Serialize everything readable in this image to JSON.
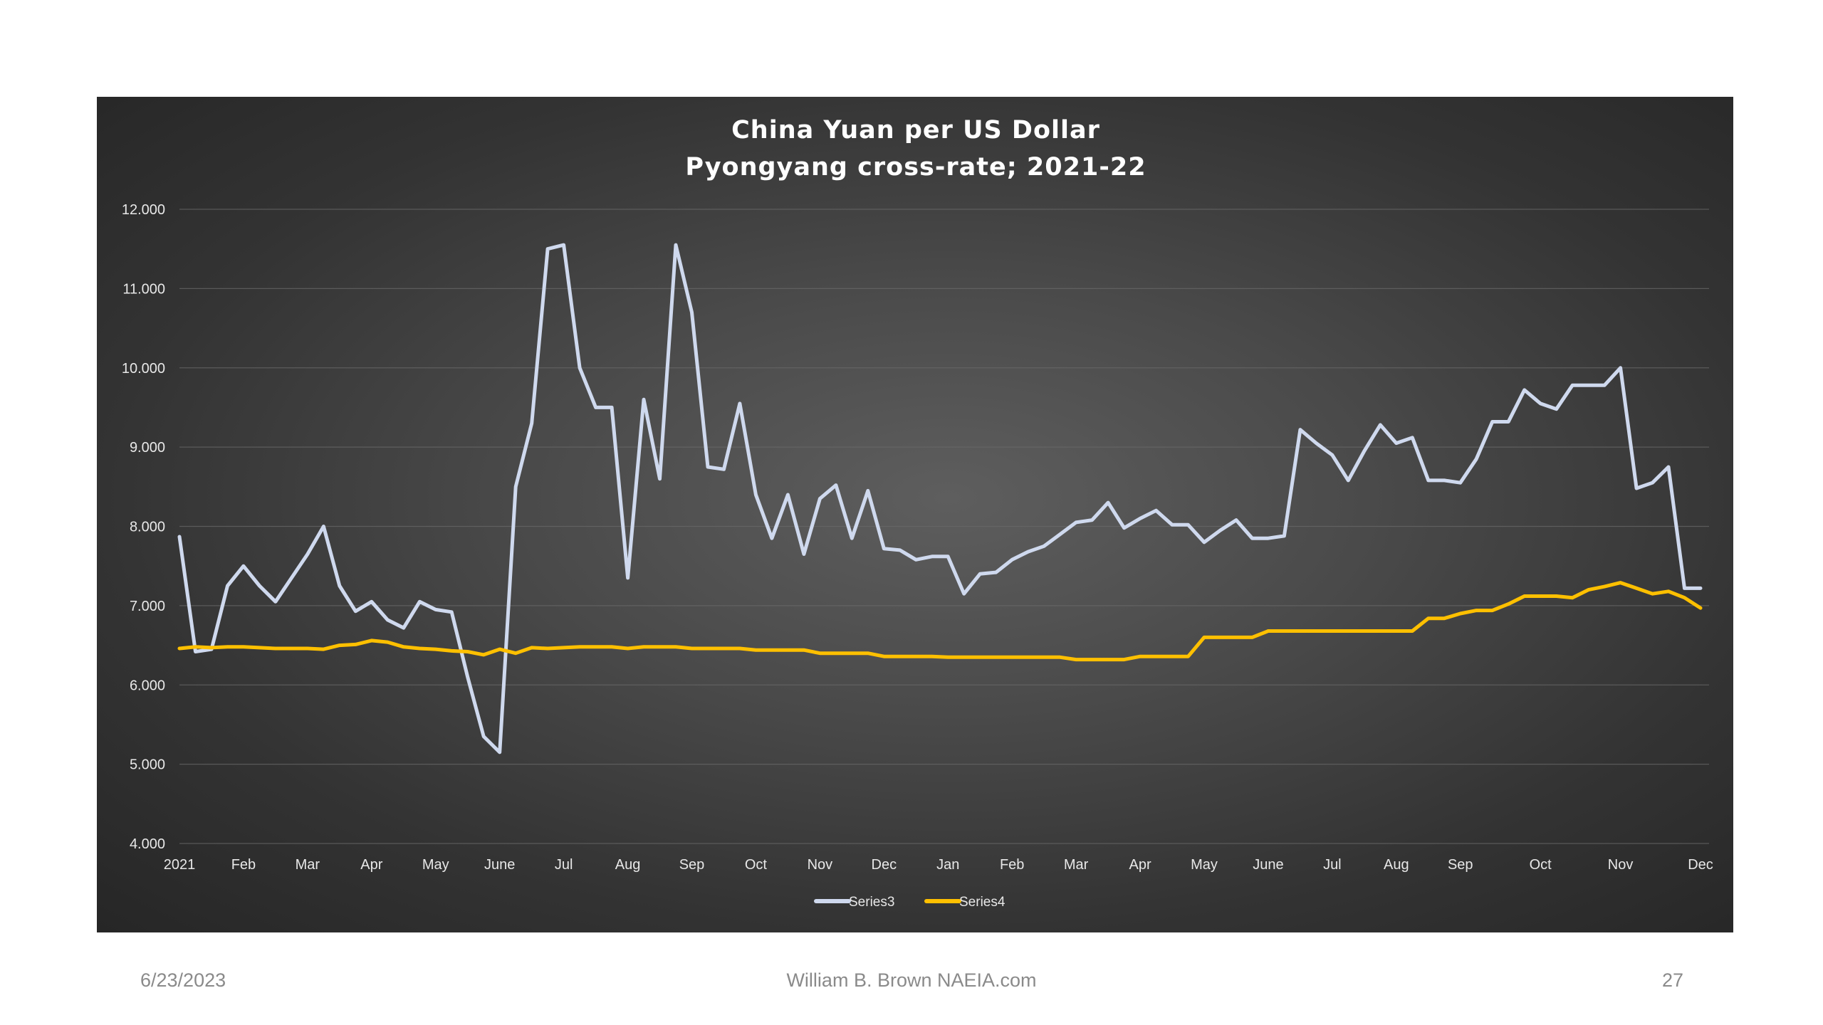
{
  "chart_data": {
    "type": "line",
    "title": [
      "China Yuan per US Dollar",
      "Pyongyang cross-rate; 2021-22"
    ],
    "xlabel": "",
    "ylabel": "",
    "ylim": [
      4,
      12
    ],
    "yticks": [
      "4.000",
      "5.000",
      "6.000",
      "7.000",
      "8.000",
      "9.000",
      "10.000",
      "11.000",
      "12.000"
    ],
    "xticks": [
      "2021",
      "Feb",
      "Mar",
      "Apr",
      "May",
      "June",
      "Jul",
      "Aug",
      "Sep",
      "Oct",
      "Nov",
      "Dec",
      "Jan",
      "Feb",
      "Mar",
      "Apr",
      "May",
      "June",
      "Jul",
      "Aug",
      "Sep",
      "Oct",
      "Nov",
      "Dec"
    ],
    "xtick_positions": [
      0,
      4,
      8,
      12,
      16,
      20,
      24,
      28,
      32,
      36,
      40,
      44,
      48,
      52,
      56,
      60,
      64,
      68,
      72,
      76,
      80,
      85,
      90,
      95
    ],
    "x_points": 96,
    "grid": true,
    "legend_position": "bottom",
    "series": [
      {
        "name": "Series3",
        "color": "#cfd9ee",
        "values": [
          7.87,
          6.42,
          6.45,
          7.25,
          7.5,
          7.25,
          7.05,
          7.35,
          7.65,
          8.0,
          7.25,
          6.93,
          7.05,
          6.82,
          6.72,
          7.05,
          6.95,
          6.92,
          6.1,
          5.35,
          5.15,
          8.5,
          9.3,
          11.5,
          11.55,
          10.0,
          9.5,
          9.5,
          7.35,
          9.6,
          8.6,
          11.55,
          10.7,
          8.75,
          8.72,
          9.55,
          8.4,
          7.85,
          8.4,
          7.65,
          8.35,
          8.52,
          7.85,
          8.45,
          7.72,
          7.7,
          7.58,
          7.62,
          7.62,
          7.15,
          7.4,
          7.42,
          7.58,
          7.68,
          7.75,
          7.9,
          8.05,
          8.08,
          8.3,
          7.98,
          8.1,
          8.2,
          8.02,
          8.02,
          7.8,
          7.95,
          8.08,
          7.85,
          7.85,
          7.88,
          9.22,
          9.05,
          8.9,
          8.58,
          8.95,
          9.28,
          9.05,
          9.12,
          8.58,
          8.58,
          8.55,
          8.85,
          9.32,
          9.32,
          9.72,
          9.55,
          9.48,
          9.78,
          9.78,
          9.78,
          10.0,
          8.48,
          8.55,
          8.75,
          7.22,
          7.22
        ]
      },
      {
        "name": "Series4",
        "color": "#ffc000",
        "values": [
          6.46,
          6.48,
          6.47,
          6.48,
          6.48,
          6.47,
          6.46,
          6.46,
          6.46,
          6.45,
          6.5,
          6.51,
          6.56,
          6.54,
          6.48,
          6.46,
          6.45,
          6.43,
          6.42,
          6.38,
          6.45,
          6.4,
          6.47,
          6.46,
          6.47,
          6.48,
          6.48,
          6.48,
          6.46,
          6.48,
          6.48,
          6.48,
          6.46,
          6.46,
          6.46,
          6.46,
          6.44,
          6.44,
          6.44,
          6.44,
          6.4,
          6.4,
          6.4,
          6.4,
          6.36,
          6.36,
          6.36,
          6.36,
          6.35,
          6.35,
          6.35,
          6.35,
          6.35,
          6.35,
          6.35,
          6.35,
          6.32,
          6.32,
          6.32,
          6.32,
          6.36,
          6.36,
          6.36,
          6.36,
          6.6,
          6.6,
          6.6,
          6.6,
          6.68,
          6.68,
          6.68,
          6.68,
          6.68,
          6.68,
          6.68,
          6.68,
          6.68,
          6.68,
          6.84,
          6.84,
          6.9,
          6.94,
          6.94,
          7.02,
          7.12,
          7.12,
          7.12,
          7.1,
          7.2,
          7.24,
          7.29,
          7.22,
          7.15,
          7.18,
          7.1,
          6.97
        ]
      }
    ]
  },
  "footer": {
    "date": "6/23/2023",
    "author": "William B. Brown  NAEIA.com",
    "page": "27"
  }
}
